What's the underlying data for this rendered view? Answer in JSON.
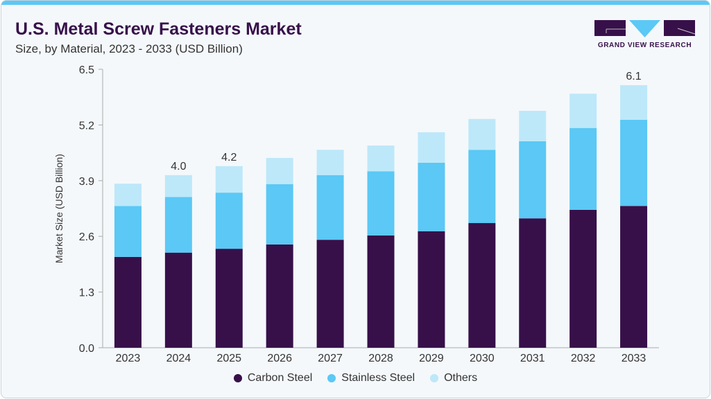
{
  "header": {
    "title": "U.S. Metal Screw Fasteners Market",
    "subtitle": "Size, by Material, 2023 - 2033 (USD Billion)"
  },
  "logo": {
    "text": "GRAND VIEW RESEARCH",
    "colors": {
      "dark": "#37104a",
      "accent": "#5bc8f5"
    }
  },
  "chart_data": {
    "type": "bar",
    "stacked": true,
    "title": "U.S. Metal Screw Fasteners Market",
    "subtitle": "Size, by Material, 2023 - 2033 (USD Billion)",
    "xlabel": "",
    "ylabel": "Market Size (USD Billion)",
    "ylim": [
      0,
      6.5
    ],
    "yticks": [
      "0.0",
      "1.3",
      "2.6",
      "3.9",
      "5.2",
      "6.5"
    ],
    "grid": false,
    "legend_position": "bottom",
    "categories": [
      "2023",
      "2024",
      "2025",
      "2026",
      "2027",
      "2028",
      "2029",
      "2030",
      "2031",
      "2032",
      "2033"
    ],
    "series": [
      {
        "name": "Carbon Steel",
        "color": "#37104a",
        "values": [
          2.12,
          2.22,
          2.31,
          2.41,
          2.52,
          2.62,
          2.72,
          2.91,
          3.02,
          3.22,
          3.31
        ]
      },
      {
        "name": "Stainless Steel",
        "color": "#5bc8f5",
        "values": [
          1.19,
          1.3,
          1.31,
          1.41,
          1.51,
          1.5,
          1.6,
          1.71,
          1.8,
          1.91,
          2.01
        ]
      },
      {
        "name": "Others",
        "color": "#bde8f9",
        "values": [
          0.52,
          0.51,
          0.62,
          0.61,
          0.59,
          0.6,
          0.71,
          0.72,
          0.71,
          0.8,
          0.81
        ]
      }
    ],
    "annotations": [
      {
        "category": "2024",
        "label": "4.0"
      },
      {
        "category": "2025",
        "label": "4.2"
      },
      {
        "category": "2033",
        "label": "6.1"
      }
    ]
  }
}
